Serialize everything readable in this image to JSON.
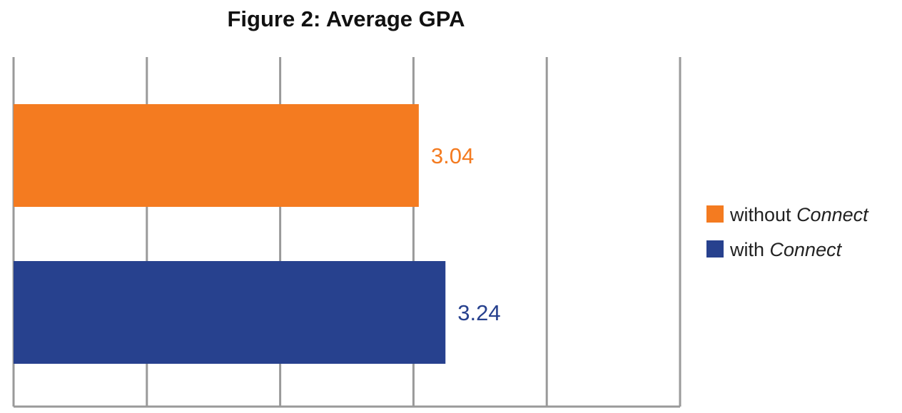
{
  "chart_data": {
    "type": "bar",
    "orientation": "horizontal",
    "title": "Figure 2: Average GPA",
    "xlabel": "",
    "ylabel": "",
    "xlim": [
      0,
      5
    ],
    "grid": true,
    "legend_position": "right",
    "series": [
      {
        "name": "without Connect",
        "name_plain": "without",
        "name_italic": "Connect",
        "value": 3.04,
        "value_label": "3.04",
        "color": "#F47B20"
      },
      {
        "name": "with Connect",
        "name_plain": "with",
        "name_italic": "Connect",
        "value": 3.24,
        "value_label": "3.24",
        "color": "#27418E"
      }
    ]
  },
  "colors": {
    "grid": "#9A9A9A",
    "title": "#111111",
    "legend_text": "#222222"
  }
}
